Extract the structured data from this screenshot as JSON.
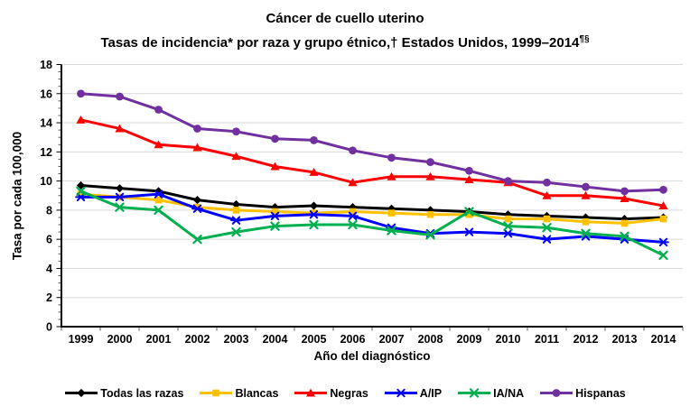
{
  "chart_data": {
    "type": "line",
    "title": "Cáncer de cuello uterino",
    "subtitle": "Tasas de incidencia* por raza y grupo étnico,† Estados Unidos, 1999–2014",
    "subtitle_superscript": "¶§",
    "xlabel": "Año del diagnóstico",
    "ylabel": "Tasa por cada 100,000",
    "ylim": [
      0,
      18
    ],
    "ytick_step": 2,
    "grid": true,
    "grid_color": "#D9D9D9",
    "axis_color": "#000000",
    "legend_position": "bottom",
    "x": [
      1999,
      2000,
      2001,
      2002,
      2003,
      2004,
      2005,
      2006,
      2007,
      2008,
      2009,
      2010,
      2011,
      2012,
      2013,
      2014
    ],
    "series": [
      {
        "key": "todas-las-razas",
        "label": "Todas las razas",
        "color": "#000000",
        "marker": "diamond",
        "values": [
          9.7,
          9.5,
          9.3,
          8.7,
          8.4,
          8.2,
          8.3,
          8.2,
          8.1,
          8.0,
          7.9,
          7.7,
          7.6,
          7.5,
          7.4,
          7.5
        ]
      },
      {
        "key": "blancas",
        "label": "Blancas",
        "color": "#FFC000",
        "marker": "square",
        "values": [
          9.1,
          8.9,
          8.7,
          8.2,
          8.0,
          7.9,
          7.8,
          7.9,
          7.8,
          7.7,
          7.7,
          7.4,
          7.4,
          7.2,
          7.1,
          7.4
        ]
      },
      {
        "key": "negras",
        "label": "Negras",
        "color": "#FF0000",
        "marker": "triangle",
        "values": [
          14.2,
          13.6,
          12.5,
          12.3,
          11.7,
          11.0,
          10.6,
          9.9,
          10.3,
          10.3,
          10.1,
          9.9,
          9.0,
          9.0,
          8.8,
          8.3
        ]
      },
      {
        "key": "a-ip",
        "label": "A/IP",
        "color": "#0000FF",
        "marker": "asterisk",
        "values": [
          8.9,
          8.9,
          9.1,
          8.1,
          7.3,
          7.6,
          7.7,
          7.6,
          6.8,
          6.4,
          6.5,
          6.4,
          6.0,
          6.2,
          6.0,
          5.8
        ]
      },
      {
        "key": "ia-na",
        "label": "IA/NA",
        "color": "#00B050",
        "marker": "x",
        "values": [
          9.3,
          8.2,
          8.0,
          6.0,
          6.5,
          6.9,
          7.0,
          7.0,
          6.6,
          6.3,
          7.9,
          6.9,
          6.8,
          6.4,
          6.2,
          4.9
        ]
      },
      {
        "key": "hispanas",
        "label": "Hispanas",
        "color": "#7030A0",
        "marker": "circle",
        "values": [
          16.0,
          15.8,
          14.9,
          13.6,
          13.4,
          12.9,
          12.8,
          12.1,
          11.6,
          11.3,
          10.7,
          10.0,
          9.9,
          9.6,
          9.3,
          9.4
        ]
      }
    ]
  }
}
